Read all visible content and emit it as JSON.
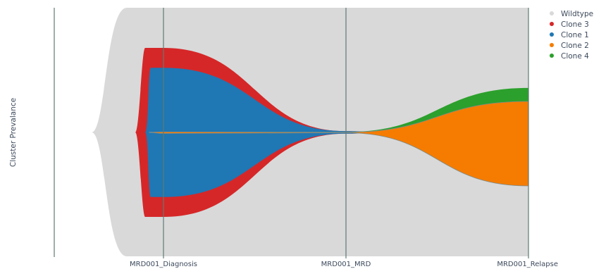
{
  "chart_data": {
    "type": "area",
    "subtype": "fish-plot",
    "title": "",
    "xlabel": "",
    "ylabel": "Cluster Prevalance",
    "timepoints": [
      "MRD001_Diagnosis",
      "MRD001_MRD",
      "MRD001_Relapse"
    ],
    "ylim": [
      0,
      100
    ],
    "grid": true,
    "legend_position": "top-right",
    "series": [
      {
        "name": "Wildtype",
        "color": "#d9d9d9",
        "values": [
          100,
          100,
          100
        ]
      },
      {
        "name": "Clone 3",
        "color": "#d62728",
        "values": [
          68,
          1,
          0
        ]
      },
      {
        "name": "Clone 1",
        "color": "#1f77b4",
        "values": [
          52,
          1,
          0
        ]
      },
      {
        "name": "Clone 2",
        "color": "#f57c00",
        "values": [
          0.6,
          0.2,
          34
        ]
      },
      {
        "name": "Clone 4",
        "color": "#2ca02c",
        "values": [
          0,
          0.2,
          9
        ]
      }
    ]
  }
}
